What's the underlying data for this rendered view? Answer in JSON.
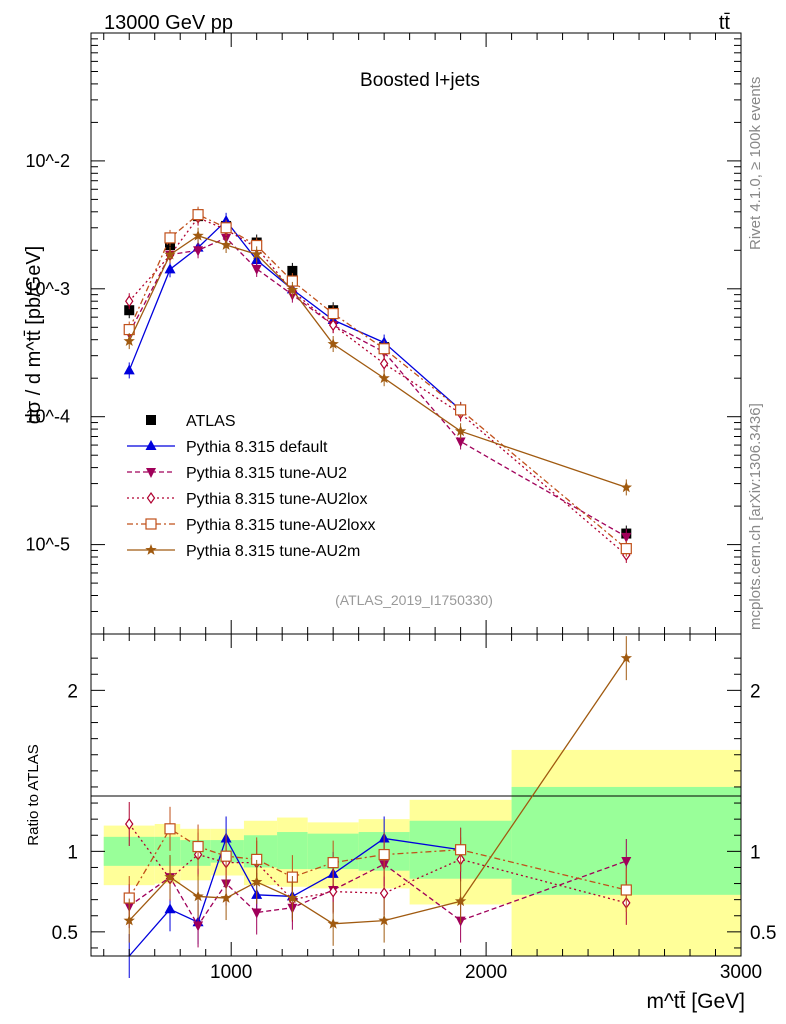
{
  "header": {
    "energy": "13000 GeV pp",
    "process": "tt̄",
    "side_top": "Rivet 4.1.0, ≥ 100k events",
    "side_bottom": "mcplots.cern.ch [arXiv:1306.3436]"
  },
  "chart_data": [
    {
      "type": "line",
      "title": "Boosted l+jets",
      "analysis": "(ATLAS_2019_I1750330)",
      "ylabel": "dσ / d m^tt̄ [pb/GeV]",
      "yscale": "log",
      "ylim": [
        2e-06,
        0.1
      ],
      "xlim": [
        450,
        3000
      ],
      "ytick_labels": [
        "10^-5",
        "10^-4",
        "10^-3",
        "10^-2"
      ],
      "x": [
        600,
        760,
        870,
        980,
        1100,
        1240,
        1400,
        1600,
        1900,
        2550
      ],
      "series": [
        {
          "name": "ATLAS",
          "color": "#000000",
          "marker": "square",
          "values": [
            0.00068,
            0.0022,
            0.0037,
            0.0031,
            0.0023,
            0.00138,
            0.00068,
            0.00035,
            0.000112,
            1.22e-05
          ]
        },
        {
          "name": "Pythia 8.315 default",
          "color": "#0000dd",
          "marker": "triangle-up",
          "values": [
            0.00023,
            0.00142,
            0.0021,
            0.0034,
            0.00168,
            0.00099,
            0.00057,
            0.00038,
            0.000113,
            null
          ]
        },
        {
          "name": "Pythia 8.315 tune-AU2",
          "color": "#a0005a",
          "marker": "triangle-down",
          "values": [
            0.00045,
            0.00185,
            0.002,
            0.0025,
            0.00143,
            0.0009,
            0.00052,
            0.00032,
            6.4e-05,
            1.15e-05
          ]
        },
        {
          "name": "Pythia 8.315 tune-AU2lox",
          "color": "#b00030",
          "marker": "diamond",
          "values": [
            0.0008,
            0.00183,
            0.0036,
            0.0029,
            0.0021,
            0.00096,
            0.00052,
            0.00026,
            0.000106,
            8.3e-06
          ]
        },
        {
          "name": "Pythia 8.315 tune-AU2loxx",
          "color": "#c0501a",
          "marker": "open-square",
          "values": [
            0.00048,
            0.0025,
            0.0038,
            0.003,
            0.00218,
            0.00115,
            0.00064,
            0.00034,
            0.000113,
            9.3e-06
          ]
        },
        {
          "name": "Pythia 8.315 tune-AU2m",
          "color": "#a05a10",
          "marker": "star",
          "values": [
            0.00039,
            0.00185,
            0.0026,
            0.0022,
            0.00186,
            0.00098,
            0.00037,
            0.0002,
            7.7e-05,
            2.8e-05
          ]
        }
      ]
    },
    {
      "type": "line",
      "ylabel": "Ratio to ATLAS",
      "xlabel": "m^tt̄ [GeV]",
      "ylim": [
        0.35,
        2.35
      ],
      "xlim": [
        450,
        3000
      ],
      "ytick_labels": [
        "0.5",
        "1",
        "2"
      ],
      "xtick_labels": [
        "1000",
        "2000",
        "3000"
      ],
      "bands": [
        {
          "x0": 500,
          "x1": 700,
          "green": [
            0.91,
            1.09
          ],
          "yellow": [
            0.79,
            1.16
          ]
        },
        {
          "x0": 700,
          "x1": 800,
          "green": [
            0.91,
            1.09
          ],
          "yellow": [
            0.8,
            1.17
          ]
        },
        {
          "x0": 800,
          "x1": 920,
          "green": [
            0.91,
            1.07
          ],
          "yellow": [
            0.82,
            1.14
          ]
        },
        {
          "x0": 920,
          "x1": 1050,
          "green": [
            0.93,
            1.07
          ],
          "yellow": [
            0.85,
            1.14
          ]
        },
        {
          "x0": 1050,
          "x1": 1180,
          "green": [
            0.9,
            1.1
          ],
          "yellow": [
            0.79,
            1.19
          ]
        },
        {
          "x0": 1180,
          "x1": 1300,
          "green": [
            0.89,
            1.12
          ],
          "yellow": [
            0.78,
            1.21
          ]
        },
        {
          "x0": 1300,
          "x1": 1500,
          "green": [
            0.89,
            1.11
          ],
          "yellow": [
            0.77,
            1.18
          ]
        },
        {
          "x0": 1500,
          "x1": 1700,
          "green": [
            0.88,
            1.12
          ],
          "yellow": [
            0.77,
            1.2
          ]
        },
        {
          "x0": 1700,
          "x1": 2100,
          "green": [
            0.83,
            1.19
          ],
          "yellow": [
            0.67,
            1.32
          ]
        },
        {
          "x0": 2100,
          "x1": 3000,
          "green": [
            0.73,
            1.4
          ],
          "yellow": [
            0.35,
            1.63
          ]
        }
      ],
      "series": [
        {
          "name": "Pythia 8.315 default",
          "values": [
            0.33,
            0.64,
            0.56,
            1.08,
            0.73,
            0.72,
            0.86,
            1.08,
            1.01,
            null
          ]
        },
        {
          "name": "Pythia 8.315 tune-AU2",
          "values": [
            0.66,
            0.84,
            0.54,
            0.8,
            0.62,
            0.65,
            0.76,
            0.92,
            0.57,
            0.94
          ]
        },
        {
          "name": "Pythia 8.315 tune-AU2lox",
          "values": [
            1.17,
            0.83,
            0.98,
            0.93,
            0.93,
            0.7,
            0.75,
            0.74,
            0.95,
            0.68
          ]
        },
        {
          "name": "Pythia 8.315 tune-AU2loxx",
          "values": [
            0.71,
            1.14,
            1.03,
            0.97,
            0.95,
            0.84,
            0.93,
            0.98,
            1.01,
            0.76
          ]
        },
        {
          "name": "Pythia 8.315 tune-AU2m",
          "values": [
            0.57,
            0.84,
            0.72,
            0.71,
            0.81,
            0.71,
            0.55,
            0.57,
            0.69,
            2.2
          ]
        }
      ]
    }
  ]
}
